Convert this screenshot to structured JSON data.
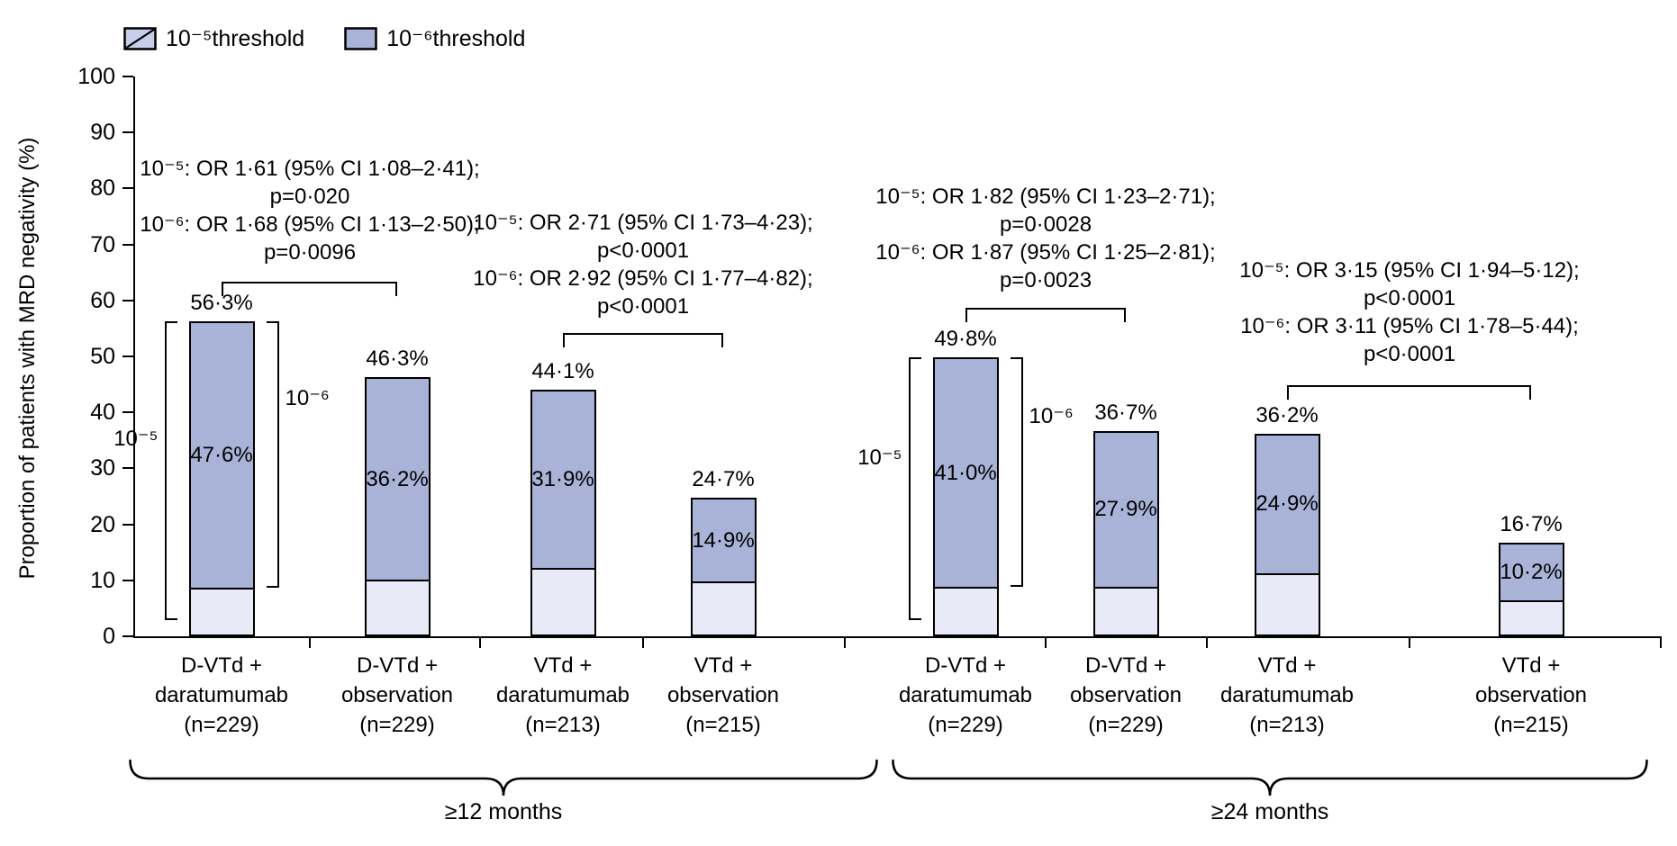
{
  "chart_data": {
    "type": "bar",
    "stacked": true,
    "title": "",
    "ylabel": "Proportion of patients with MRD negativity (%)",
    "ylim": [
      0,
      100
    ],
    "yticks": [
      0,
      10,
      20,
      30,
      40,
      50,
      60,
      70,
      80,
      90,
      100
    ],
    "grid": false,
    "legend_position": "top-left",
    "colors": {
      "dark_fill": "#a9b3d8",
      "light_fill": "#e8ebf7",
      "legend_hatch_fill": "#c7cee9",
      "outline": "#000000"
    },
    "legend": [
      {
        "label": "10⁻⁵threshold",
        "style": "hatched"
      },
      {
        "label": "10⁻⁶threshold",
        "style": "solid"
      }
    ],
    "side_bracket_labels": {
      "left": "10⁻⁵",
      "right": "10⁻⁶"
    },
    "groups": [
      {
        "label": "≥12 months",
        "bars": [
          {
            "category_lines": [
              "D-VTd +",
              "daratumumab",
              "(n=229)"
            ],
            "total_pct": 56.3,
            "total_label": "56·3%",
            "threshold6_pct": 47.6,
            "threshold6_label": "47·6%",
            "side_brackets": true
          },
          {
            "category_lines": [
              "D-VTd +",
              "observation",
              "(n=229)"
            ],
            "total_pct": 46.3,
            "total_label": "46·3%",
            "threshold6_pct": 36.2,
            "threshold6_label": "36·2%",
            "side_brackets": false
          },
          {
            "category_lines": [
              "VTd +",
              "daratumumab",
              "(n=213)"
            ],
            "total_pct": 44.1,
            "total_label": "44·1%",
            "threshold6_pct": 31.9,
            "threshold6_label": "31·9%",
            "side_brackets": false
          },
          {
            "category_lines": [
              "VTd +",
              "observation",
              "(n=215)"
            ],
            "total_pct": 24.7,
            "total_label": "24·7%",
            "threshold6_pct": 14.9,
            "threshold6_label": "14·9%",
            "side_brackets": false
          }
        ],
        "comparisons": [
          {
            "lines": [
              "10⁻⁵: OR 1·61 (95% CI 1·08–2·41);",
              "p=0·020",
              "10⁻⁶: OR 1·68 (95% CI 1·13–2·50);",
              "p=0·0096"
            ]
          },
          {
            "lines": [
              "10⁻⁵: OR 2·71 (95% CI 1·73–4·23);",
              "p<0·0001",
              "10⁻⁶: OR 2·92 (95% CI 1·77–4·82);",
              "p<0·0001"
            ]
          }
        ]
      },
      {
        "label": "≥24 months",
        "bars": [
          {
            "category_lines": [
              "D-VTd +",
              "daratumumab",
              "(n=229)"
            ],
            "total_pct": 49.8,
            "total_label": "49·8%",
            "threshold6_pct": 41.0,
            "threshold6_label": "41·0%",
            "side_brackets": true
          },
          {
            "category_lines": [
              "D-VTd +",
              "observation",
              "(n=229)"
            ],
            "total_pct": 36.7,
            "total_label": "36·7%",
            "threshold6_pct": 27.9,
            "threshold6_label": "27·9%",
            "side_brackets": false
          },
          {
            "category_lines": [
              "VTd +",
              "daratumumab",
              "(n=213)"
            ],
            "total_pct": 36.2,
            "total_label": "36·2%",
            "threshold6_pct": 24.9,
            "threshold6_label": "24·9%",
            "side_brackets": false
          },
          {
            "category_lines": [
              "VTd +",
              "observation",
              "(n=215)"
            ],
            "total_pct": 16.7,
            "total_label": "16·7%",
            "threshold6_pct": 10.2,
            "threshold6_label": "10·2%",
            "side_brackets": false
          }
        ],
        "comparisons": [
          {
            "lines": [
              "10⁻⁵: OR 1·82 (95% CI 1·23–2·71);",
              "p=0·0028",
              "10⁻⁶: OR 1·87 (95% CI 1·25–2·81);",
              "p=0·0023"
            ]
          },
          {
            "lines": [
              "10⁻⁵: OR 3·15 (95% CI 1·94–5·12);",
              "p<0·0001",
              "10⁻⁶: OR 3·11 (95% CI 1·78–5·44);",
              "p<0·0001"
            ]
          }
        ]
      }
    ]
  }
}
